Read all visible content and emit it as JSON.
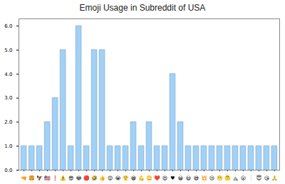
{
  "chart_data": {
    "type": "bar",
    "title": "Emoji Usage in Subreddit of USA",
    "categories": [
      "🔫",
      "🍔",
      "🦅",
      "🇺🇸",
      "❗",
      "⚠️",
      "😎",
      "😂",
      "🔴",
      "🤣",
      "👍",
      "😡",
      "😭",
      "😤",
      "😁",
      "💪",
      "🙄",
      "❤️",
      "😍",
      "♥",
      "😀",
      "😃",
      "😅",
      "💥",
      "😢",
      "😬",
      "🤔",
      "⛰️",
      "😮",
      "❕",
      "😇",
      "😘",
      "🙏"
    ],
    "values": [
      1,
      1,
      1,
      2,
      3,
      5,
      1,
      6,
      1,
      5,
      5,
      1,
      1,
      1,
      2,
      1,
      2,
      1,
      1,
      4,
      2,
      1,
      1,
      1,
      1,
      1,
      1,
      1,
      1,
      1,
      1,
      1,
      1
    ],
    "color": "#a3d0f5",
    "ylim": [
      0,
      6.3
    ],
    "yticks": [
      0,
      1,
      2,
      3,
      4,
      5,
      6
    ],
    "grid": false
  }
}
